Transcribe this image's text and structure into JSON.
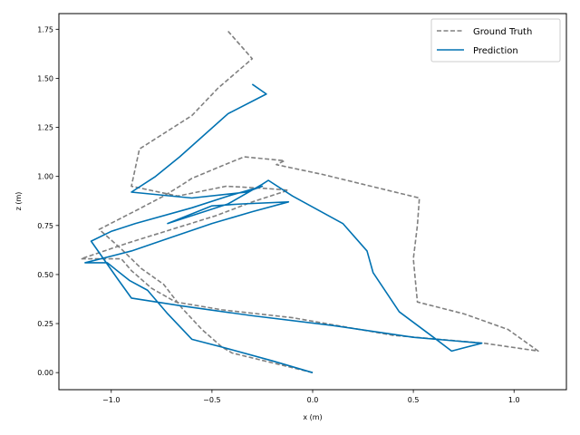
{
  "chart_data": {
    "type": "line",
    "title": "",
    "xlabel": "x (m)",
    "ylabel": "z (m)",
    "xlim": [
      -1.26,
      1.26
    ],
    "ylim": [
      -0.087,
      1.83
    ],
    "x_ticks": [
      -1.0,
      -0.5,
      0.0,
      0.5,
      1.0
    ],
    "x_tick_labels": [
      "−1.0",
      "−0.5",
      "0.0",
      "0.5",
      "1.0"
    ],
    "y_ticks": [
      0.0,
      0.25,
      0.5,
      0.75,
      1.0,
      1.25,
      1.5,
      1.75
    ],
    "y_tick_labels": [
      "0.00",
      "0.25",
      "0.50",
      "0.75",
      "1.00",
      "1.25",
      "1.50",
      "1.75"
    ],
    "grid": false,
    "legend_position": "top-right",
    "series": [
      {
        "name": "Ground Truth",
        "color": "#808080",
        "style": "dashed",
        "points": [
          [
            0.0,
            0.0
          ],
          [
            -0.2,
            0.05
          ],
          [
            -0.4,
            0.1
          ],
          [
            -0.45,
            0.13
          ],
          [
            -0.55,
            0.22
          ],
          [
            -0.65,
            0.33
          ],
          [
            -0.74,
            0.45
          ],
          [
            -0.85,
            0.53
          ],
          [
            -0.95,
            0.63
          ],
          [
            -1.06,
            0.73
          ],
          [
            -0.87,
            0.83
          ],
          [
            -0.74,
            0.9
          ],
          [
            -0.66,
            0.95
          ],
          [
            -0.6,
            0.99
          ],
          [
            -0.46,
            1.05
          ],
          [
            -0.34,
            1.1
          ],
          [
            -0.14,
            1.08
          ],
          [
            -0.18,
            1.06
          ],
          [
            0.05,
            1.01
          ],
          [
            0.53,
            0.89
          ],
          [
            0.52,
            0.75
          ],
          [
            0.5,
            0.58
          ],
          [
            0.52,
            0.36
          ],
          [
            0.75,
            0.3
          ],
          [
            0.97,
            0.22
          ],
          [
            1.12,
            0.11
          ],
          [
            0.85,
            0.15
          ],
          [
            0.4,
            0.19
          ],
          [
            -0.1,
            0.28
          ],
          [
            -0.45,
            0.32
          ],
          [
            -0.68,
            0.36
          ],
          [
            -0.8,
            0.43
          ],
          [
            -0.9,
            0.52
          ],
          [
            -0.95,
            0.58
          ],
          [
            -1.15,
            0.58
          ],
          [
            -0.92,
            0.66
          ],
          [
            -0.7,
            0.73
          ],
          [
            -0.48,
            0.8
          ],
          [
            -0.3,
            0.87
          ],
          [
            -0.12,
            0.93
          ],
          [
            -0.25,
            0.94
          ],
          [
            -0.43,
            0.95
          ],
          [
            -0.67,
            0.9
          ],
          [
            -0.9,
            0.95
          ],
          [
            -0.86,
            1.14
          ],
          [
            -0.6,
            1.31
          ],
          [
            -0.47,
            1.45
          ],
          [
            -0.3,
            1.6
          ],
          [
            -0.42,
            1.74
          ]
        ]
      },
      {
        "name": "Prediction",
        "color": "#0072b2",
        "style": "solid",
        "points": [
          [
            0.0,
            0.0
          ],
          [
            -0.2,
            0.06
          ],
          [
            -0.45,
            0.13
          ],
          [
            -0.6,
            0.17
          ],
          [
            -0.72,
            0.3
          ],
          [
            -0.82,
            0.42
          ],
          [
            -0.91,
            0.47
          ],
          [
            -1.02,
            0.56
          ],
          [
            -1.13,
            0.56
          ],
          [
            -0.9,
            0.62
          ],
          [
            -0.7,
            0.69
          ],
          [
            -0.5,
            0.76
          ],
          [
            -0.3,
            0.82
          ],
          [
            -0.12,
            0.87
          ],
          [
            -0.35,
            0.86
          ],
          [
            -0.5,
            0.85
          ],
          [
            -0.72,
            0.76
          ],
          [
            -0.42,
            0.86
          ],
          [
            -0.25,
            0.96
          ],
          [
            -0.22,
            0.98
          ],
          [
            -0.1,
            0.9
          ],
          [
            0.15,
            0.76
          ],
          [
            0.27,
            0.62
          ],
          [
            0.3,
            0.51
          ],
          [
            0.43,
            0.31
          ],
          [
            0.6,
            0.18
          ],
          [
            0.69,
            0.11
          ],
          [
            0.84,
            0.15
          ],
          [
            0.5,
            0.18
          ],
          [
            0.1,
            0.24
          ],
          [
            -0.3,
            0.29
          ],
          [
            -0.65,
            0.34
          ],
          [
            -0.9,
            0.38
          ],
          [
            -0.97,
            0.48
          ],
          [
            -1.1,
            0.67
          ],
          [
            -1.0,
            0.72
          ],
          [
            -0.88,
            0.76
          ],
          [
            -0.6,
            0.84
          ],
          [
            -0.42,
            0.9
          ],
          [
            -0.25,
            0.95
          ],
          [
            -0.33,
            0.92
          ],
          [
            -0.6,
            0.89
          ],
          [
            -0.9,
            0.92
          ],
          [
            -0.78,
            1.0
          ],
          [
            -0.66,
            1.1
          ],
          [
            -0.42,
            1.32
          ],
          [
            -0.23,
            1.42
          ],
          [
            -0.3,
            1.47
          ]
        ]
      }
    ]
  }
}
